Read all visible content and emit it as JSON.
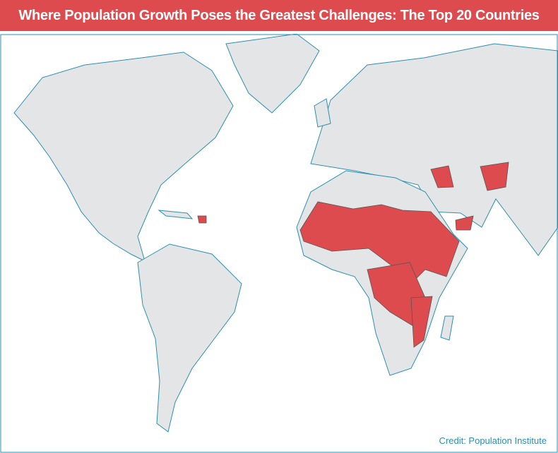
{
  "header": {
    "title": "Where Population Growth Poses the Greatest Challenges: The Top 20 Countries"
  },
  "footer": {
    "credit": "Credit: Population Institute"
  }
}
